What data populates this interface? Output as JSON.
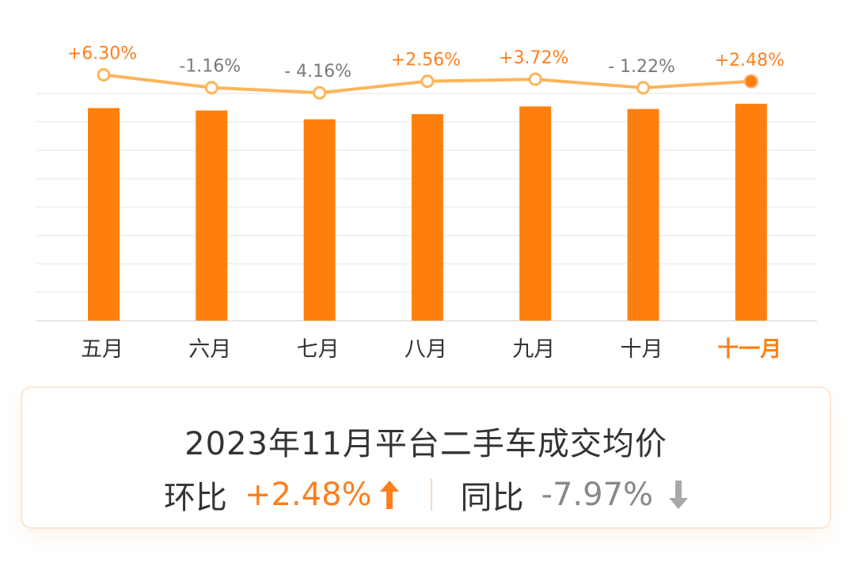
{
  "chart_data": {
    "type": "bar",
    "categories": [
      "五月",
      "六月",
      "七月",
      "八月",
      "九月",
      "十月",
      "十一月"
    ],
    "values": [
      100.0,
      98.84,
      94.73,
      97.16,
      100.78,
      99.55,
      102.02
    ],
    "ylim": [
      0,
      113.6
    ],
    "grid": true,
    "highlight_index": 6,
    "line_series": {
      "values": [
        6.3,
        -1.16,
        -4.16,
        2.56,
        3.72,
        -1.22,
        2.48
      ],
      "labels": [
        "+6.30%",
        "-1.16%",
        "- 4.16%",
        "+2.56%",
        "+3.72%",
        "- 1.22%",
        "+2.48%"
      ]
    },
    "colors": {
      "bar": "#ff7f0e",
      "line": "#fdb45a",
      "positive_label": "#ff7f1e",
      "negative_label": "#7a7a7a",
      "grid": "#eeeeee",
      "axis_label": "#333333"
    }
  },
  "summary": {
    "title": "2023年11月平台二手车成交均价",
    "mom_label": "环比",
    "mom_value": "+2.48%",
    "mom_icon": "arrow-up-icon",
    "yoy_label": "同比",
    "yoy_value": "-7.97%",
    "yoy_icon": "arrow-down-icon"
  }
}
